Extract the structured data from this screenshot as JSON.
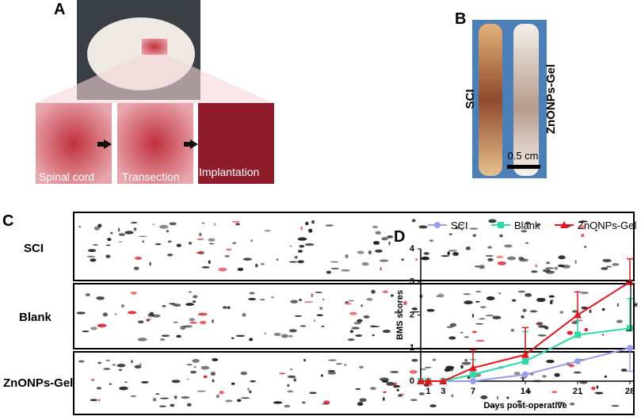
{
  "figure": {
    "panel_labels": [
      "A",
      "B",
      "C",
      "D"
    ],
    "panel_a": {
      "captions": [
        "Spinal cord",
        "Transection",
        "Implantation"
      ]
    },
    "panel_b": {
      "labels": [
        "SCI",
        "ZnONPs-Gel"
      ],
      "scale_bar": "0.5 cm"
    },
    "panel_c": {
      "rows": [
        "SCI",
        "Blank",
        "ZnONPs-Gel"
      ]
    }
  },
  "chart_data": {
    "type": "line",
    "x_label": "Days post-operative",
    "y_label": "BMS scores",
    "annotation": "*",
    "x": [
      0,
      1,
      3,
      7,
      14,
      21,
      28
    ],
    "xlim": [
      0,
      28
    ],
    "xticks": [
      1,
      3,
      7,
      14,
      21,
      28
    ],
    "ylim": [
      0,
      4
    ],
    "yticks": [
      0,
      1,
      2,
      3,
      4
    ],
    "series": [
      {
        "name": "SCI",
        "color": "#9b9bec",
        "marker": "circle",
        "error_side": "down",
        "values": [
          0,
          0,
          0,
          0,
          0.2,
          0.6,
          1.0
        ],
        "errors": [
          null,
          null,
          null,
          null,
          null,
          null,
          0.7
        ]
      },
      {
        "name": "Blank",
        "color": "#2ed9a6",
        "marker": "square",
        "error_side": "up",
        "values": [
          0,
          0,
          0,
          0.2,
          0.6,
          1.4,
          1.6
        ],
        "errors": [
          null,
          null,
          null,
          0.45,
          0.9,
          0.6,
          0.9
        ]
      },
      {
        "name": "ZnONPs-Gel",
        "color": "#e8141c",
        "marker": "triangle",
        "error_side": "up",
        "values": [
          0,
          0,
          0,
          0.4,
          0.8,
          2.0,
          3.0
        ],
        "errors": [
          null,
          null,
          null,
          0.55,
          0.82,
          0.7,
          0.7
        ]
      }
    ]
  }
}
